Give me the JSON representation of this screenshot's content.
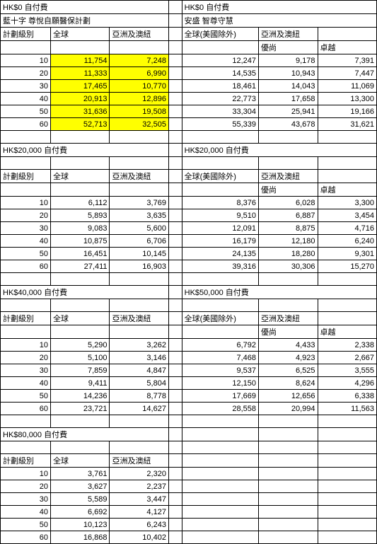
{
  "left": {
    "title": "藍十字 尊悅自願醫保計劃",
    "ded_labels": [
      "HK$0 自付費",
      "HK$20,000 自付費",
      "HK$40,000 自付費",
      "HK$80,000 自付費"
    ],
    "col_header": "計劃級別",
    "cols": [
      "全球",
      "亞洲及澳紐"
    ],
    "ages": [
      10,
      20,
      30,
      40,
      50,
      60
    ],
    "blocks": [
      {
        "hl": true,
        "rows": [
          [
            "11,754",
            "7,248"
          ],
          [
            "11,333",
            "6,990"
          ],
          [
            "17,465",
            "10,770"
          ],
          [
            "20,913",
            "12,896"
          ],
          [
            "31,636",
            "19,508"
          ],
          [
            "52,713",
            "32,505"
          ]
        ]
      },
      {
        "hl": false,
        "rows": [
          [
            "6,112",
            "3,769"
          ],
          [
            "5,893",
            "3,635"
          ],
          [
            "9,083",
            "5,600"
          ],
          [
            "10,875",
            "6,706"
          ],
          [
            "16,451",
            "10,145"
          ],
          [
            "27,411",
            "16,903"
          ]
        ]
      },
      {
        "hl": false,
        "rows": [
          [
            "5,290",
            "3,262"
          ],
          [
            "5,100",
            "3,146"
          ],
          [
            "7,859",
            "4,847"
          ],
          [
            "9,411",
            "5,804"
          ],
          [
            "14,236",
            "8,778"
          ],
          [
            "23,721",
            "14,627"
          ]
        ]
      },
      {
        "hl": false,
        "rows": [
          [
            "3,761",
            "2,320"
          ],
          [
            "3,627",
            "2,237"
          ],
          [
            "5,589",
            "3,447"
          ],
          [
            "6,692",
            "4,127"
          ],
          [
            "10,123",
            "6,243"
          ],
          [
            "16,868",
            "10,402"
          ]
        ]
      }
    ]
  },
  "right": {
    "title": "安盛 智尊守慧",
    "ded_labels": [
      "HK$0 自付費",
      "HK$20,000 自付費",
      "HK$50,000 自付費"
    ],
    "cols": [
      "全球(美國除外)",
      "亞洲及澳紐",
      ""
    ],
    "subcols": [
      "",
      "優尚",
      "卓越"
    ],
    "blocks": [
      {
        "rows": [
          [
            "12,247",
            "9,178",
            "7,391"
          ],
          [
            "14,535",
            "10,943",
            "7,447"
          ],
          [
            "18,461",
            "14,043",
            "11,069"
          ],
          [
            "22,773",
            "17,658",
            "13,300"
          ],
          [
            "33,304",
            "25,941",
            "19,166"
          ],
          [
            "55,339",
            "43,678",
            "31,621"
          ]
        ]
      },
      {
        "rows": [
          [
            "8,376",
            "6,028",
            "3,300"
          ],
          [
            "9,510",
            "6,887",
            "3,454"
          ],
          [
            "12,091",
            "8,875",
            "4,716"
          ],
          [
            "16,179",
            "12,180",
            "6,240"
          ],
          [
            "24,135",
            "18,280",
            "9,301"
          ],
          [
            "39,316",
            "30,306",
            "15,270"
          ]
        ]
      },
      {
        "rows": [
          [
            "6,792",
            "4,433",
            "2,338"
          ],
          [
            "7,468",
            "4,923",
            "2,667"
          ],
          [
            "9,537",
            "6,525",
            "3,555"
          ],
          [
            "12,150",
            "8,624",
            "4,296"
          ],
          [
            "17,669",
            "12,656",
            "6,338"
          ],
          [
            "28,558",
            "20,994",
            "11,563"
          ]
        ]
      }
    ]
  }
}
